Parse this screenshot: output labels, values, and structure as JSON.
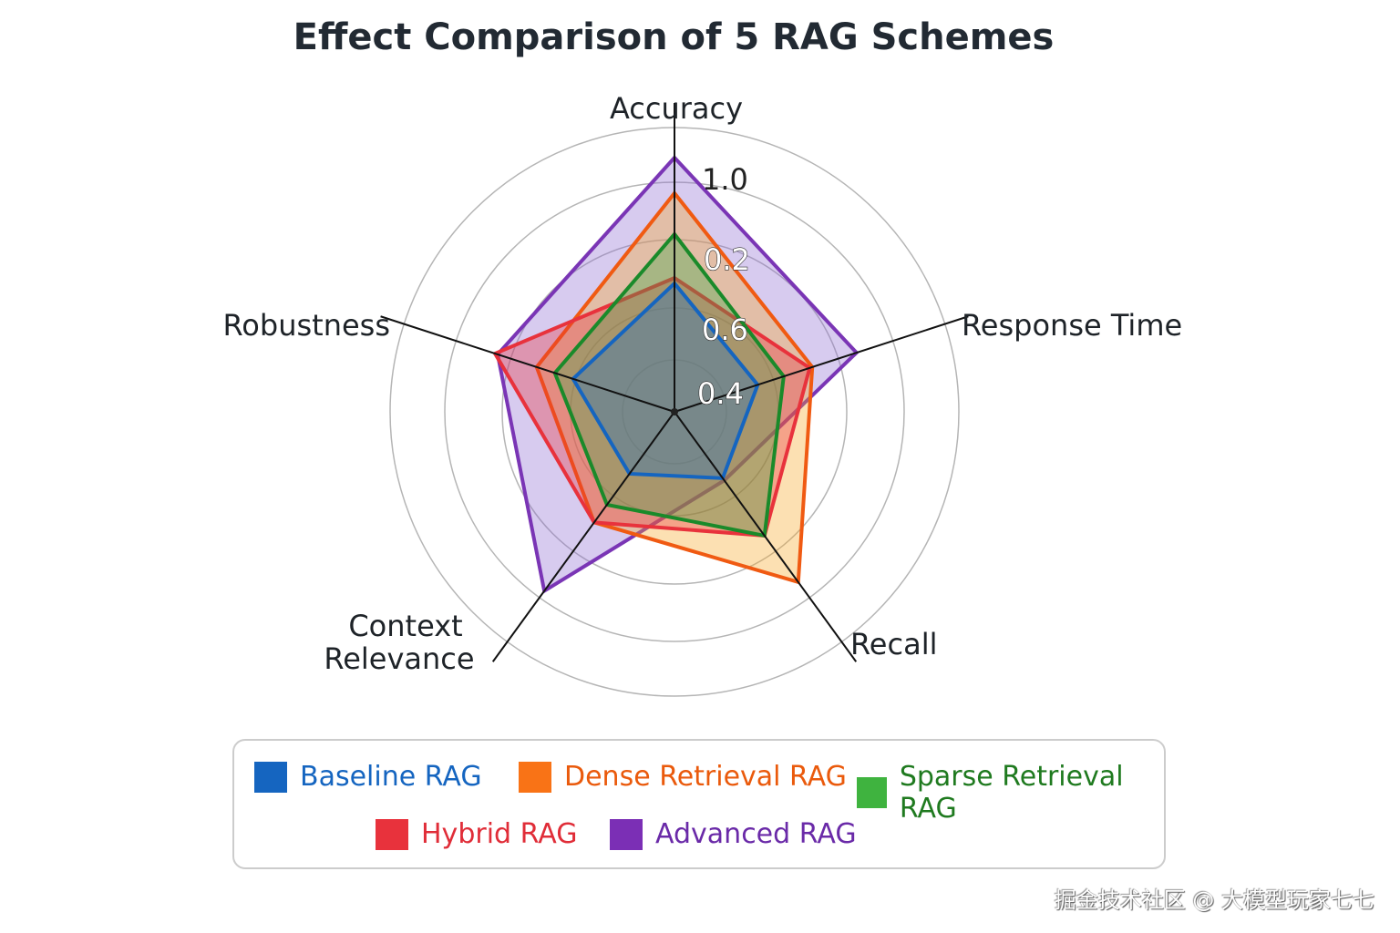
{
  "chart_data": {
    "type": "radar",
    "title": "Effect Comparison of 5 RAG Schemes",
    "axes": [
      "Accuracy",
      "Response Time",
      "Recall",
      "Context Relevance",
      "Robustness"
    ],
    "axis_label_lines": {
      "Context Relevance": [
        "Context",
        "Relevance"
      ]
    },
    "tick_labels": [
      "1.0",
      "0.2",
      "0.6",
      "0.4"
    ],
    "range": [
      0,
      1
    ],
    "grid": true,
    "legend_position": "bottom",
    "series": [
      {
        "name": "Advanced RAG",
        "color": "#7a35b5",
        "fill": "#8c6ad0",
        "values": [
          0.93,
          0.7,
          0.31,
          0.81,
          0.68
        ]
      },
      {
        "name": "Dense Retrieval RAG",
        "color": "#f05a12",
        "fill": "#f5a623",
        "values": [
          0.8,
          0.53,
          0.77,
          0.5,
          0.53
        ]
      },
      {
        "name": "Hybrid RAG",
        "color": "#e8323c",
        "fill": "#e8323c",
        "values": [
          0.49,
          0.52,
          0.56,
          0.5,
          0.69
        ]
      },
      {
        "name": "Sparse Retrieval RAG",
        "color": "#1a8a2a",
        "fill": "#3aa845",
        "values": [
          0.65,
          0.42,
          0.56,
          0.42,
          0.46
        ]
      },
      {
        "name": "Baseline RAG",
        "color": "#1565c0",
        "fill": "#1f6fc4",
        "values": [
          0.47,
          0.32,
          0.3,
          0.28,
          0.39
        ]
      }
    ]
  },
  "legend": [
    {
      "label": "Baseline RAG",
      "color": "#1565c0",
      "text_color": "#1565c0"
    },
    {
      "label": "Dense Retrieval RAG",
      "color": "#f97316",
      "text_color": "#ea5a0c"
    },
    {
      "label": "Sparse Retrieval RAG",
      "color": "#3fb33f",
      "text_color": "#1f7a1f"
    },
    {
      "label": "Hybrid RAG",
      "color": "#e8323c",
      "text_color": "#e02d38"
    },
    {
      "label": "Advanced RAG",
      "color": "#7b2fb5",
      "text_color": "#6a2aa8"
    }
  ],
  "watermark": "掘金技术社区 @ 大模型玩家七七"
}
